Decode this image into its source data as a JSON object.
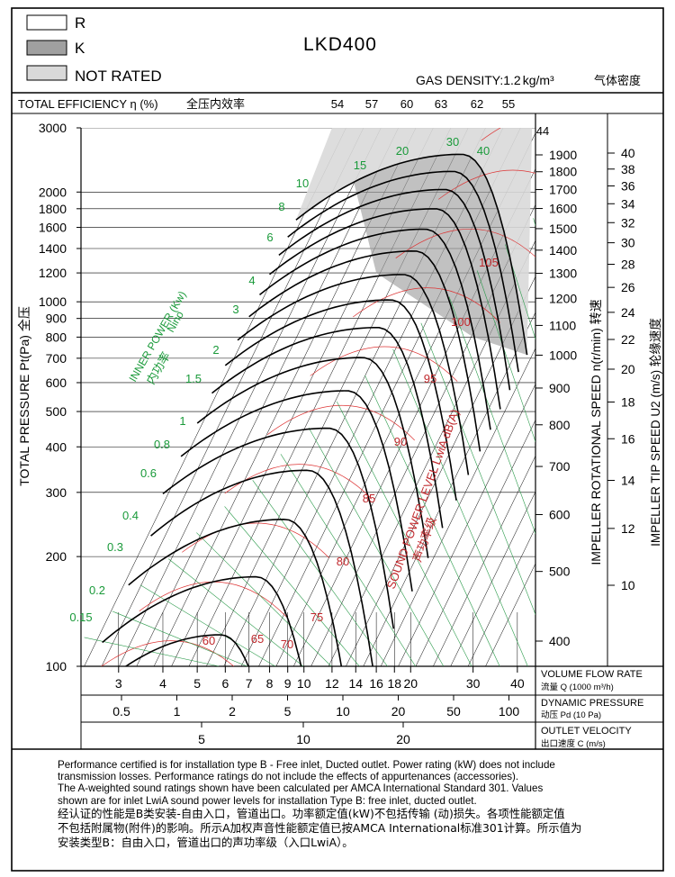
{
  "title": "LKD400",
  "gas_density": {
    "label": "GAS DENSITY:",
    "value": "1.2",
    "unit": "kg/m³",
    "cn": "气体密度"
  },
  "legend": [
    {
      "label": "R",
      "color": "#ffffff"
    },
    {
      "label": "K",
      "color": "#a0a0a0"
    },
    {
      "label": "NOT RATED",
      "color": "#d9d9d9"
    }
  ],
  "efficiency_header": {
    "label": "TOTAL EFFICIENCY η (%)",
    "cn": "全压内效率",
    "values": [
      "54",
      "57",
      "60",
      "63",
      "62",
      "55",
      "44"
    ]
  },
  "axis_labels": {
    "left": "TOTAL PRESSURE Pt(Pa)  全压",
    "speed": "IMPELLER ROTATIONAL SPEED n(r/min)  转速",
    "tip": "IMPELLER TIP SPEED U2 (m/s)  轮缘速度",
    "power": "INNER POWER (Kw)",
    "power_sub": "Nino",
    "power_cn": "内功率",
    "sound": "SOUND POWER LEVEL LwiA dB(A)",
    "sound_cn": "声功率级"
  },
  "bottom_scales": [
    {
      "label": "VOLUME FLOW RATE",
      "sub": "流量 Q (1000 m³/h)"
    },
    {
      "label": "DYNAMIC PRESSURE",
      "sub": "动压 Pd (10 Pa)"
    },
    {
      "label": "OUTLET VELOCITY",
      "sub": "出口速度 C (m/s)"
    }
  ],
  "notes": {
    "en": [
      "Performance certified is for installation type B - Free inlet, Ducted outlet. Power rating (kW) does not include",
      "transmission losses. Performance ratings do not include the effects of appurtenances (accessories).",
      "The A-weighted sound ratings shown have been calculated per AMCA International Standard 301. Values",
      "shown are for inlet LwiA sound power levels for installation Type B: free inlet, ducted outlet."
    ],
    "cn": [
      "经认证的性能是B类安装-自由入口，管道出口。功率额定值(kW)不包括传输 (动)损失。各项性能额定值",
      "不包括附属物(附件)的影响。所示A加权声音性能额定值已按AMCA International标准301计算。所示值为",
      "安装类型B：自由入口，管道出口的声功率级（入口LwiA）。"
    ]
  },
  "chart_data": {
    "type": "line",
    "title": "LKD400",
    "x_axis": {
      "label": "VOLUME FLOW RATE 流量 Q (1000 m³/h)",
      "scale": "log",
      "range": [
        2.35,
        45
      ],
      "ticks": [
        3,
        4,
        5,
        6,
        7,
        8,
        9,
        10,
        12,
        14,
        16,
        18,
        20,
        30,
        40
      ]
    },
    "y_axis": {
      "label": "TOTAL PRESSURE Pt(Pa) 全压",
      "scale": "log",
      "range": [
        100,
        3000
      ],
      "ticks": [
        100,
        200,
        300,
        400,
        500,
        600,
        700,
        800,
        900,
        1000,
        1200,
        1400,
        1600,
        1800,
        2000,
        3000
      ]
    },
    "dynamic_pressure_ticks": [
      "0.5",
      "1",
      "2",
      "5",
      "10",
      "20",
      "50",
      "100"
    ],
    "outlet_velocity_ticks": [
      "5",
      "10",
      "20"
    ],
    "speed_ticks": [
      400,
      500,
      600,
      700,
      800,
      900,
      1000,
      1100,
      1200,
      1300,
      1400,
      1500,
      1600,
      1700,
      1800,
      1900
    ],
    "tip_speed_ticks": [
      10,
      12,
      14,
      16,
      18,
      20,
      22,
      24,
      26,
      28,
      30,
      32,
      34,
      36,
      38,
      40
    ],
    "power_labels": [
      "0.15",
      "0.2",
      "0.3",
      "0.4",
      "0.6",
      "0.8",
      "1",
      "1.5",
      "2",
      "3",
      "4",
      "6",
      "8",
      "10",
      "15",
      "20",
      "30",
      "40"
    ],
    "sound_labels": [
      "60",
      "65",
      "70",
      "75",
      "80",
      "85",
      "90",
      "95",
      "100",
      "105"
    ],
    "efficiency_values": [
      54,
      57,
      60,
      63,
      62,
      55,
      44
    ],
    "speed_curves_rpm": [
      {
        "rpm": 400,
        "x_start": 2.4,
        "x_peak": 5.8,
        "x_end": 8.9,
        "p_peak": 122
      },
      {
        "rpm": 500,
        "x_start": 2.7,
        "x_peak": 7.3,
        "x_end": 11.2,
        "p_peak": 176
      },
      {
        "rpm": 600,
        "x_start": 3.2,
        "x_peak": 8.8,
        "x_end": 13.5,
        "p_peak": 253
      },
      {
        "rpm": 700,
        "x_start": 3.7,
        "x_peak": 10.2,
        "x_end": 15.7,
        "p_peak": 345
      },
      {
        "rpm": 800,
        "x_start": 4.0,
        "x_peak": 11.7,
        "x_end": 17.9,
        "p_peak": 450
      },
      {
        "rpm": 900,
        "x_start": 4.5,
        "x_peak": 13.2,
        "x_end": 20.2,
        "p_peak": 570
      },
      {
        "rpm": 1000,
        "x_start": 5.0,
        "x_peak": 14.6,
        "x_end": 22.4,
        "p_peak": 703
      },
      {
        "rpm": 1100,
        "x_start": 5.5,
        "x_peak": 16.1,
        "x_end": 24.6,
        "p_peak": 850
      },
      {
        "rpm": 1200,
        "x_start": 6.0,
        "x_peak": 17.5,
        "x_end": 26.9,
        "p_peak": 1012
      },
      {
        "rpm": 1300,
        "x_start": 6.5,
        "x_peak": 19.0,
        "x_end": 29.1,
        "p_peak": 1188
      },
      {
        "rpm": 1400,
        "x_start": 7.0,
        "x_peak": 20.5,
        "x_end": 31.4,
        "p_peak": 1378
      },
      {
        "rpm": 1500,
        "x_start": 7.5,
        "x_peak": 21.9,
        "x_end": 33.6,
        "p_peak": 1582
      },
      {
        "rpm": 1600,
        "x_start": 8.0,
        "x_peak": 23.4,
        "x_end": 35.8,
        "p_peak": 1800
      },
      {
        "rpm": 1700,
        "x_start": 8.5,
        "x_peak": 24.9,
        "x_end": 38.1,
        "p_peak": 2032
      },
      {
        "rpm": 1800,
        "x_start": 9.0,
        "x_peak": 26.3,
        "x_end": 40.3,
        "p_peak": 2278
      },
      {
        "rpm": 1900,
        "x_start": 9.5,
        "x_peak": 27.8,
        "x_end": 42.6,
        "p_peak": 2538
      }
    ],
    "grid": true
  }
}
